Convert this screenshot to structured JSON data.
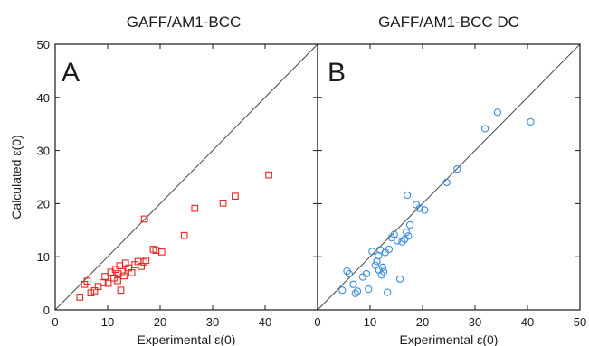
{
  "chart_data": [
    {
      "type": "scatter",
      "panel_label": "A",
      "title": "GAFF/AM1-BCC",
      "xlabel": "Experimental ε(0)",
      "ylabel": "Calculated ε(0)",
      "xlim": [
        0,
        50
      ],
      "ylim": [
        0,
        50
      ],
      "xticks": [
        "0",
        "10",
        "20",
        "30",
        "40",
        "50"
      ],
      "yticks": [
        "0",
        "10",
        "20",
        "30",
        "40",
        "50"
      ],
      "diagonal": true,
      "marker": "square",
      "color": "#e8261f",
      "x": [
        4.7,
        5.6,
        6.1,
        6.8,
        7.5,
        8.2,
        9.1,
        9.5,
        10.1,
        10.6,
        11.2,
        11.5,
        11.9,
        12.0,
        12.3,
        12.5,
        12.7,
        13.1,
        13.4,
        14.0,
        14.6,
        15.2,
        15.8,
        16.4,
        16.9,
        17.3,
        18.7,
        19.2,
        20.3,
        24.6,
        26.6,
        32.0,
        34.3,
        40.7,
        17.0
      ],
      "y": [
        2.4,
        4.8,
        5.4,
        3.2,
        3.6,
        4.4,
        5.1,
        6.3,
        5.0,
        7.1,
        6.0,
        7.6,
        5.5,
        6.8,
        8.3,
        3.7,
        7.2,
        6.4,
        8.8,
        7.9,
        7.0,
        8.5,
        9.1,
        8.2,
        9.0,
        9.3,
        11.4,
        11.2,
        10.9,
        14.0,
        19.1,
        20.1,
        21.4,
        25.4,
        17.1
      ]
    },
    {
      "type": "scatter",
      "panel_label": "B",
      "title": "GAFF/AM1-BCC DC",
      "xlabel": "Experimental ε(0)",
      "ylabel": "",
      "xlim": [
        0,
        50
      ],
      "ylim": [
        0,
        50
      ],
      "xticks": [
        "0",
        "10",
        "20",
        "30",
        "40",
        "50"
      ],
      "yticks": [],
      "diagonal": true,
      "marker": "circle",
      "color": "#3a8fd8",
      "x": [
        4.7,
        5.6,
        6.0,
        6.8,
        7.2,
        7.6,
        8.6,
        9.3,
        9.7,
        10.4,
        11.0,
        11.3,
        11.6,
        11.7,
        11.9,
        12.2,
        12.4,
        12.6,
        12.9,
        13.3,
        13.6,
        14.1,
        14.6,
        15.2,
        15.7,
        16.1,
        16.6,
        16.9,
        17.1,
        17.3,
        17.6,
        18.8,
        19.4,
        20.4,
        24.6,
        26.6,
        31.9,
        34.3,
        40.6
      ],
      "y": [
        3.7,
        7.3,
        6.8,
        4.8,
        3.1,
        3.5,
        6.2,
        6.8,
        3.9,
        11.0,
        8.4,
        9.1,
        10.2,
        7.5,
        11.3,
        6.6,
        8.0,
        7.2,
        10.8,
        3.3,
        11.4,
        13.6,
        14.2,
        13.0,
        5.8,
        12.8,
        13.3,
        14.6,
        21.6,
        13.9,
        16.0,
        19.8,
        19.1,
        18.8,
        24.0,
        26.5,
        34.1,
        37.2,
        35.4
      ]
    }
  ]
}
